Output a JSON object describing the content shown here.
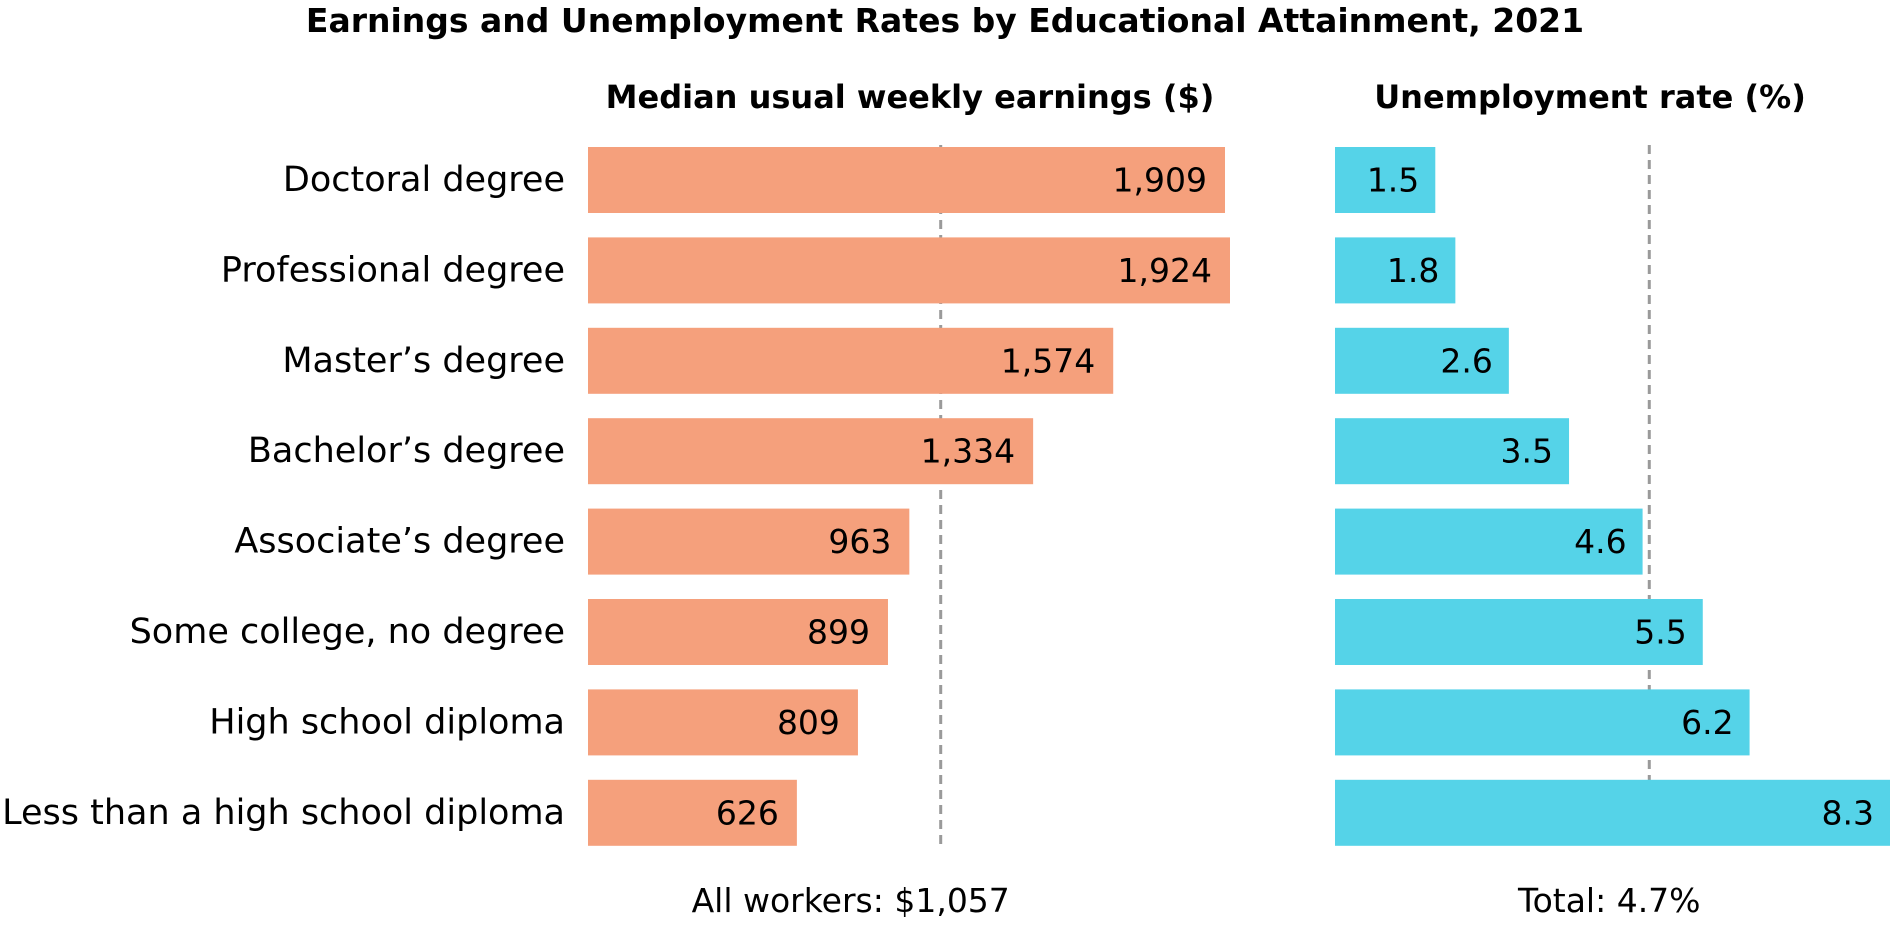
{
  "chart_data": {
    "type": "bar",
    "orientation": "horizontal",
    "title": "Earnings and Unemployment Rates by Educational Attainment, 2021",
    "categories": [
      "Doctoral degree",
      "Professional degree",
      "Master’s degree",
      "Bachelor’s degree",
      "Associate’s degree",
      "Some college, no degree",
      "High school diploma",
      "Less than a high school diploma"
    ],
    "panels": [
      {
        "key": "earnings",
        "subtitle": "Median usual weekly earnings ($)",
        "values": [
          1909,
          1924,
          1574,
          1334,
          963,
          899,
          809,
          626
        ],
        "labels": [
          "1,909",
          "1,924",
          "1,574",
          "1,334",
          "963",
          "899",
          "809",
          "626"
        ],
        "color": "#f5a07c",
        "xlim": [
          0,
          1924
        ],
        "reference": {
          "value": 1057,
          "label": "All workers: $1,057"
        }
      },
      {
        "key": "unemployment",
        "subtitle": "Unemployment rate (%)",
        "values": [
          1.5,
          1.8,
          2.6,
          3.5,
          4.6,
          5.5,
          6.2,
          8.3
        ],
        "labels": [
          "1.5",
          "1.8",
          "2.6",
          "3.5",
          "4.6",
          "5.5",
          "6.2",
          "8.3"
        ],
        "color": "#55d3e8",
        "xlim": [
          0,
          8.3
        ],
        "reference": {
          "value": 4.7,
          "label": "Total: 4.7%"
        }
      }
    ],
    "grid": false,
    "legend": "none"
  }
}
